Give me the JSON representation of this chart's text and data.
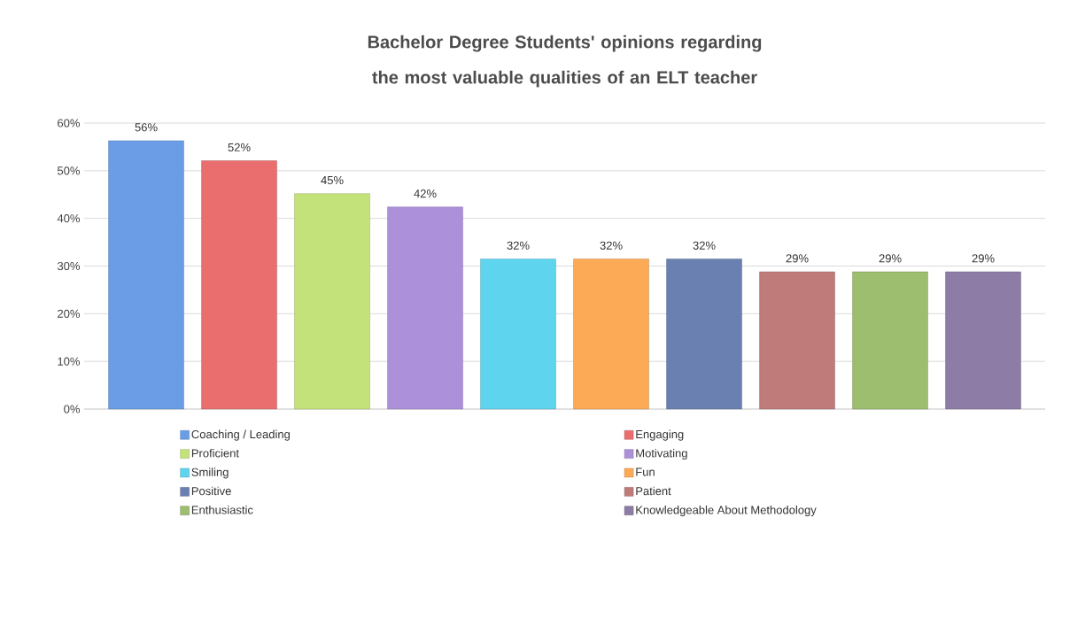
{
  "chart_data": {
    "type": "bar",
    "title": "Bachelor Degree Students' opinions regarding the most valuable qualities of an ELT teacher",
    "categories": [
      null
    ],
    "series": [
      {
        "name": "Coaching / Leading",
        "color": "#6a9de6",
        "values": [
          56.3
        ],
        "value_labels": [
          "56%"
        ]
      },
      {
        "name": "Engaging",
        "color": "#ea6e6e",
        "values": [
          52.1
        ],
        "value_labels": [
          "52%"
        ]
      },
      {
        "name": "Proficient",
        "color": "#c4e27a",
        "values": [
          45.2
        ],
        "value_labels": [
          "45%"
        ]
      },
      {
        "name": "Motivating",
        "color": "#ad90da",
        "values": [
          42.4
        ],
        "value_labels": [
          "42%"
        ]
      },
      {
        "name": "Smiling",
        "color": "#5fd4ee",
        "values": [
          31.5
        ],
        "value_labels": [
          "32%"
        ]
      },
      {
        "name": "Fun",
        "color": "#fcaa55",
        "values": [
          31.5
        ],
        "value_labels": [
          "32%"
        ]
      },
      {
        "name": "Positive",
        "color": "#6a80b0",
        "values": [
          31.5
        ],
        "value_labels": [
          "32%"
        ]
      },
      {
        "name": "Patient",
        "color": "#bf7a7a",
        "values": [
          28.8
        ],
        "value_labels": [
          "29%"
        ]
      },
      {
        "name": "Enthusiastic",
        "color": "#9cbe6e",
        "values": [
          28.8
        ],
        "value_labels": [
          "29%"
        ]
      },
      {
        "name": "Knowledgeable About Methodology",
        "color": "#8c7ca6",
        "values": [
          28.8
        ],
        "value_labels": [
          "29%"
        ]
      }
    ],
    "ylim": [
      0,
      60
    ],
    "yticks": [
      {
        "value": 0,
        "label": "0%"
      },
      {
        "value": 10,
        "label": "10%"
      },
      {
        "value": 20,
        "label": "20%"
      },
      {
        "value": 30,
        "label": "30%"
      },
      {
        "value": 40,
        "label": "40%"
      },
      {
        "value": 50,
        "label": "50%"
      },
      {
        "value": 60,
        "label": "60%"
      }
    ],
    "grid": "y",
    "legend": "bottom",
    "tick_labels": "y"
  }
}
